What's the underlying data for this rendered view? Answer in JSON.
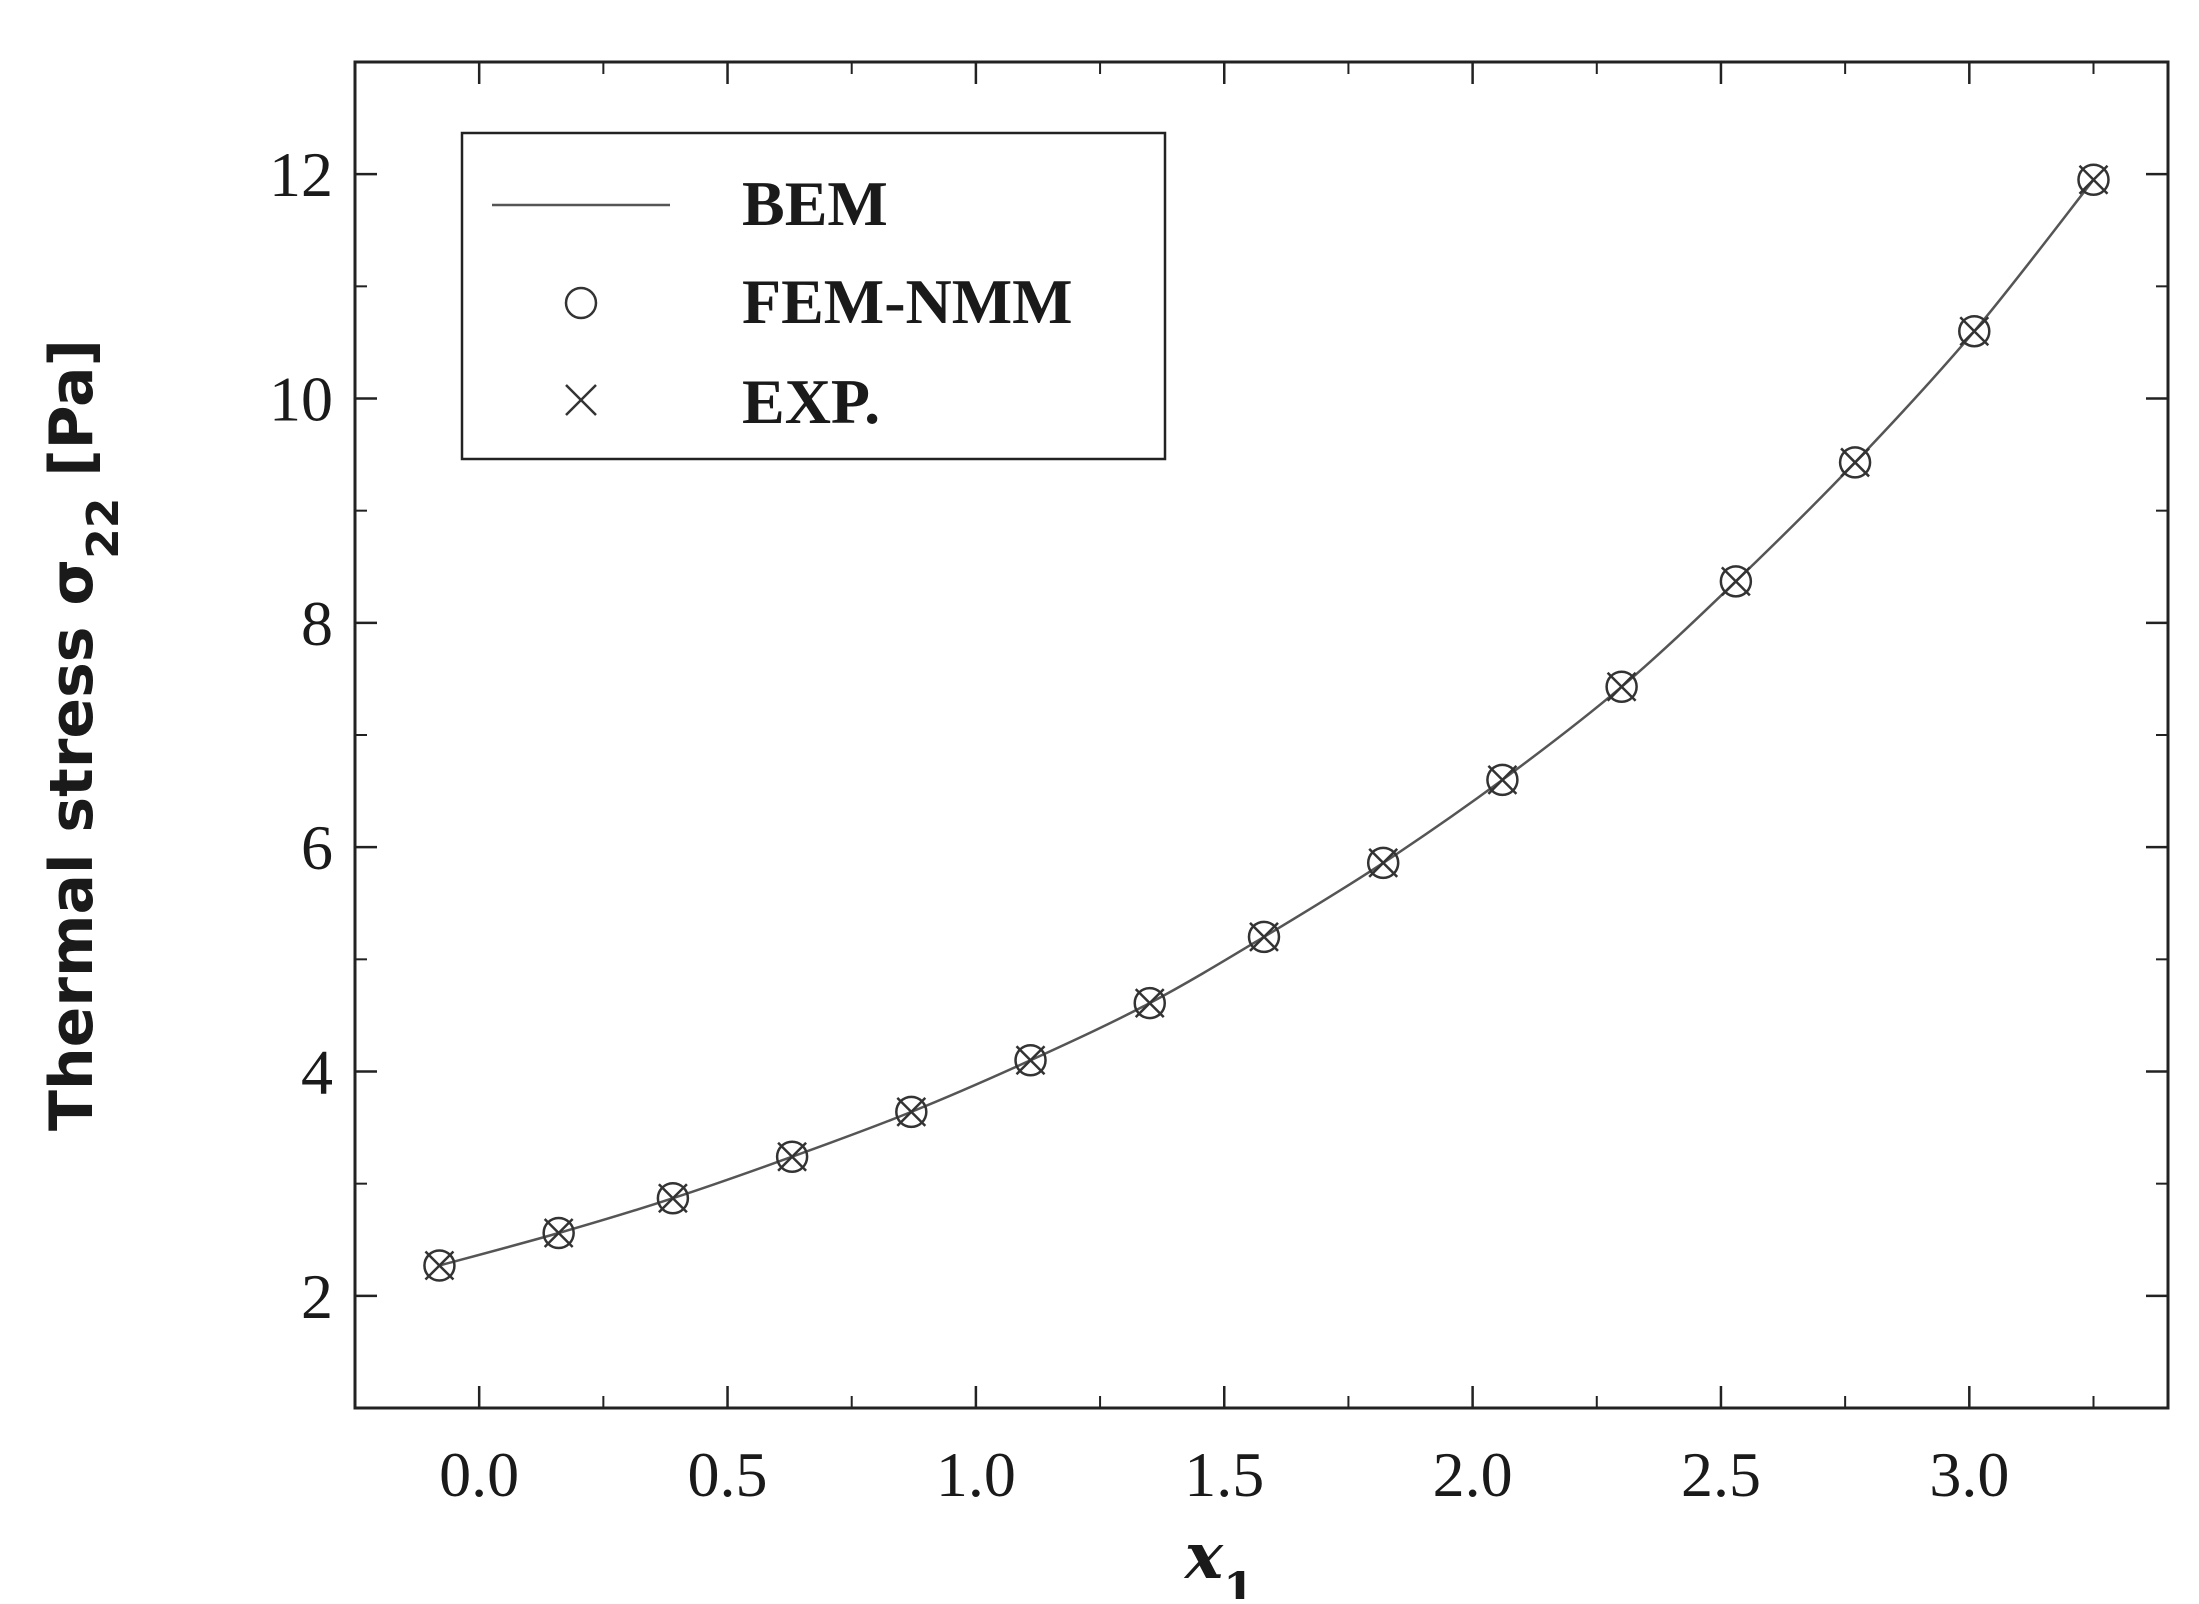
{
  "chart_data": {
    "type": "line",
    "xlabel": "x",
    "xlabel_sub": "1",
    "ylabel": "Thermal stress σ",
    "ylabel_sub": "22",
    "ylabel_unit": " [Pa]",
    "xlim": [
      -0.25,
      3.4
    ],
    "ylim": [
      1,
      13
    ],
    "xticks": [
      0.0,
      0.5,
      1.0,
      1.5,
      2.0,
      2.5,
      3.0
    ],
    "xtick_labels": [
      "0.0",
      "0.5",
      "1.0",
      "1.5",
      "2.0",
      "2.5",
      "3.0"
    ],
    "yticks": [
      2,
      4,
      6,
      8,
      10,
      12
    ],
    "ytick_labels": [
      "2",
      "4",
      "6",
      "8",
      "10",
      "12"
    ],
    "grid": false,
    "legend_position": "top-left",
    "x": [
      -0.08,
      0.16,
      0.39,
      0.63,
      0.87,
      1.11,
      1.35,
      1.58,
      1.82,
      2.06,
      2.3,
      2.53,
      2.77,
      3.01,
      3.25
    ],
    "series": [
      {
        "name": "BEM",
        "style": "line",
        "color": "#555555",
        "values": [
          2.27,
          2.56,
          2.87,
          3.24,
          3.64,
          4.1,
          4.61,
          5.2,
          5.86,
          6.6,
          7.43,
          8.37,
          9.43,
          10.6,
          11.95
        ]
      },
      {
        "name": "FEM-NMM",
        "style": "circle",
        "color": "#333333",
        "values": [
          2.27,
          2.56,
          2.87,
          3.24,
          3.64,
          4.1,
          4.61,
          5.2,
          5.86,
          6.6,
          7.43,
          8.37,
          9.43,
          10.6,
          11.95
        ]
      },
      {
        "name": "EXP.",
        "style": "cross",
        "color": "#333333",
        "values": [
          2.27,
          2.56,
          2.87,
          3.24,
          3.64,
          4.1,
          4.61,
          5.2,
          5.86,
          6.6,
          7.43,
          8.37,
          9.43,
          10.6,
          11.95
        ]
      }
    ]
  }
}
